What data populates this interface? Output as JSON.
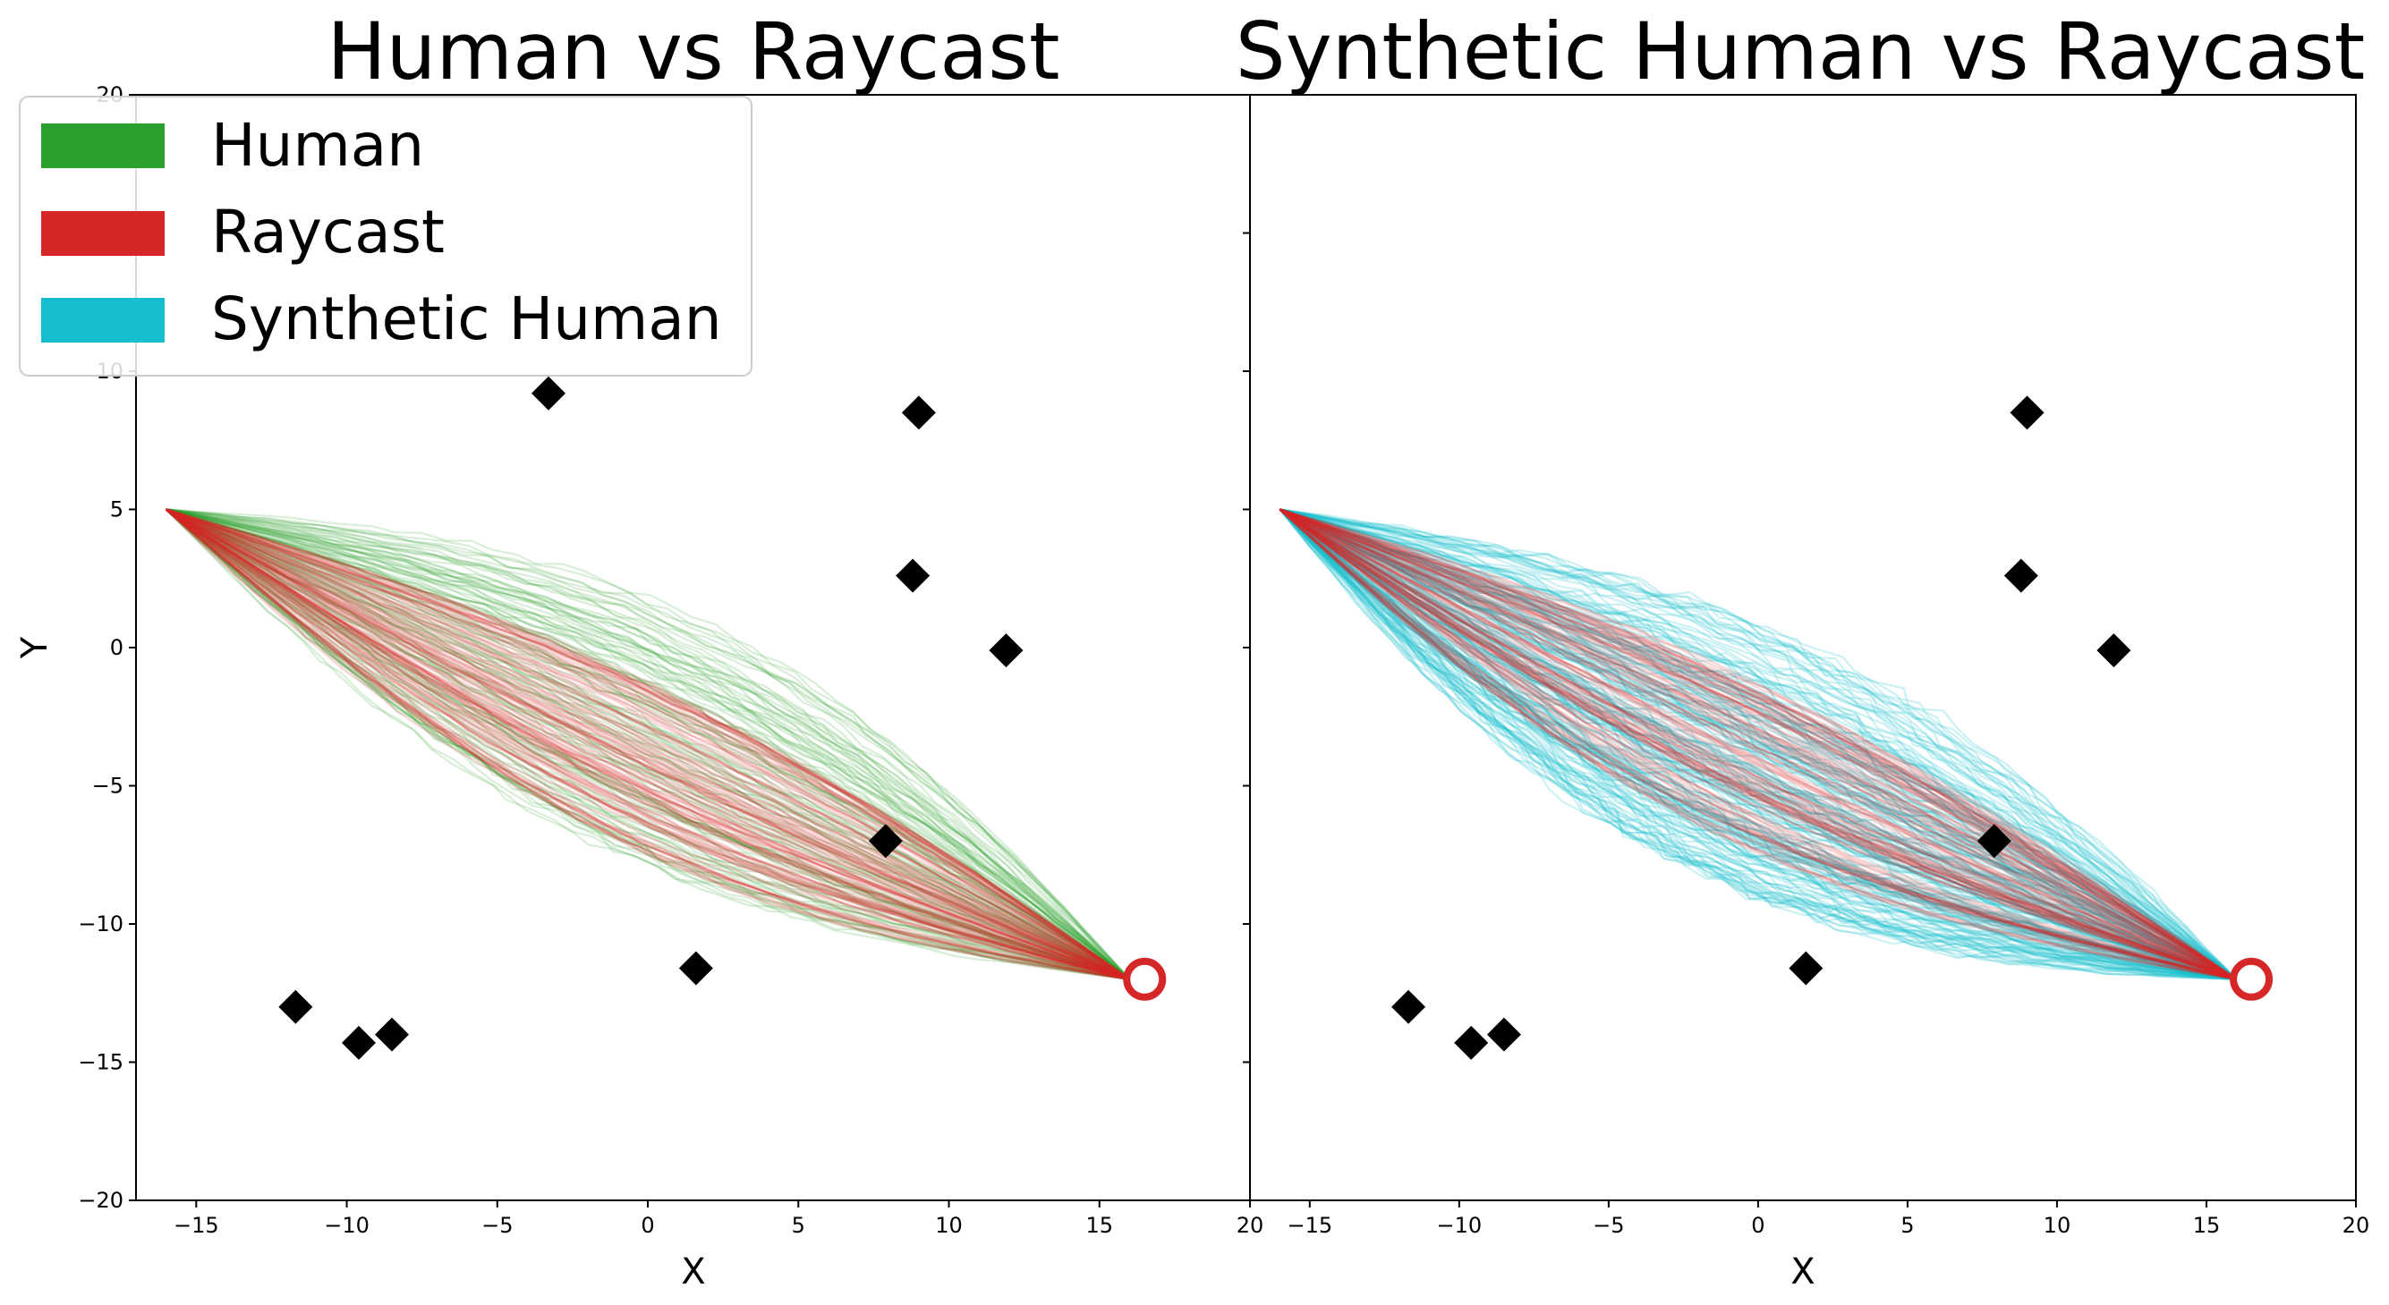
{
  "colors": {
    "human": "#2ca02c",
    "raycast": "#d62728",
    "synthetic": "#17becf",
    "obstacle": "#000000"
  },
  "legend": {
    "placement": "upper-left",
    "entries": [
      {
        "label": "Human",
        "color": "#2ca02c"
      },
      {
        "label": "Raycast",
        "color": "#d62728"
      },
      {
        "label": "Synthetic Human",
        "color": "#17becf"
      }
    ]
  },
  "chart_data": [
    {
      "type": "line",
      "title": "Human vs Raycast",
      "xlabel": "X",
      "ylabel": "Y",
      "xlim": [
        -17,
        20
      ],
      "ylim": [
        -20,
        20
      ],
      "xticks": [
        -15,
        -10,
        -5,
        0,
        5,
        10,
        15,
        20
      ],
      "yticks": [
        -20,
        -15,
        -10,
        -5,
        0,
        5,
        10,
        15,
        20
      ],
      "grid": false,
      "start": [
        -16,
        5
      ],
      "goal": [
        16,
        -12
      ],
      "obstacles": [
        [
          9,
          8.5
        ],
        [
          8.8,
          2.6
        ],
        [
          11.9,
          -0.1
        ],
        [
          7.9,
          -7
        ],
        [
          1.6,
          -11.6
        ],
        [
          -11.7,
          -13
        ],
        [
          -9.6,
          -14.3
        ],
        [
          -8.5,
          -14
        ],
        [
          -3.3,
          9.2
        ]
      ],
      "series": [
        {
          "name": "Human",
          "color": "#2ca02c",
          "count": 120,
          "mid_offset_range": [
            -4,
            5
          ],
          "spread": 0.9
        },
        {
          "name": "Raycast",
          "color": "#d62728",
          "count": 100,
          "mid_offset_range": [
            -3.5,
            2
          ],
          "spread": 0.3
        }
      ]
    },
    {
      "type": "line",
      "title": "Synthetic Human vs Raycast",
      "xlabel": "X",
      "ylabel": "",
      "xlim": [
        -17,
        20
      ],
      "ylim": [
        -20,
        20
      ],
      "xticks": [
        -15,
        -10,
        -5,
        0,
        5,
        10,
        15,
        20
      ],
      "yticks": [
        -20,
        -15,
        -10,
        -5,
        0,
        5,
        10,
        15,
        20
      ],
      "grid": false,
      "start": [
        -16,
        5
      ],
      "goal": [
        16,
        -12
      ],
      "obstacles": [
        [
          9,
          8.5
        ],
        [
          8.8,
          2.6
        ],
        [
          11.9,
          -0.1
        ],
        [
          7.9,
          -7
        ],
        [
          1.6,
          -11.6
        ],
        [
          -11.7,
          -13
        ],
        [
          -9.6,
          -14.3
        ],
        [
          -8.5,
          -14
        ]
      ],
      "series": [
        {
          "name": "Synthetic Human",
          "color": "#17becf",
          "count": 200,
          "mid_offset_range": [
            -5,
            4
          ],
          "spread": 1.6
        },
        {
          "name": "Raycast",
          "color": "#d62728",
          "count": 100,
          "mid_offset_range": [
            -3.5,
            2
          ],
          "spread": 0.3
        }
      ]
    }
  ]
}
